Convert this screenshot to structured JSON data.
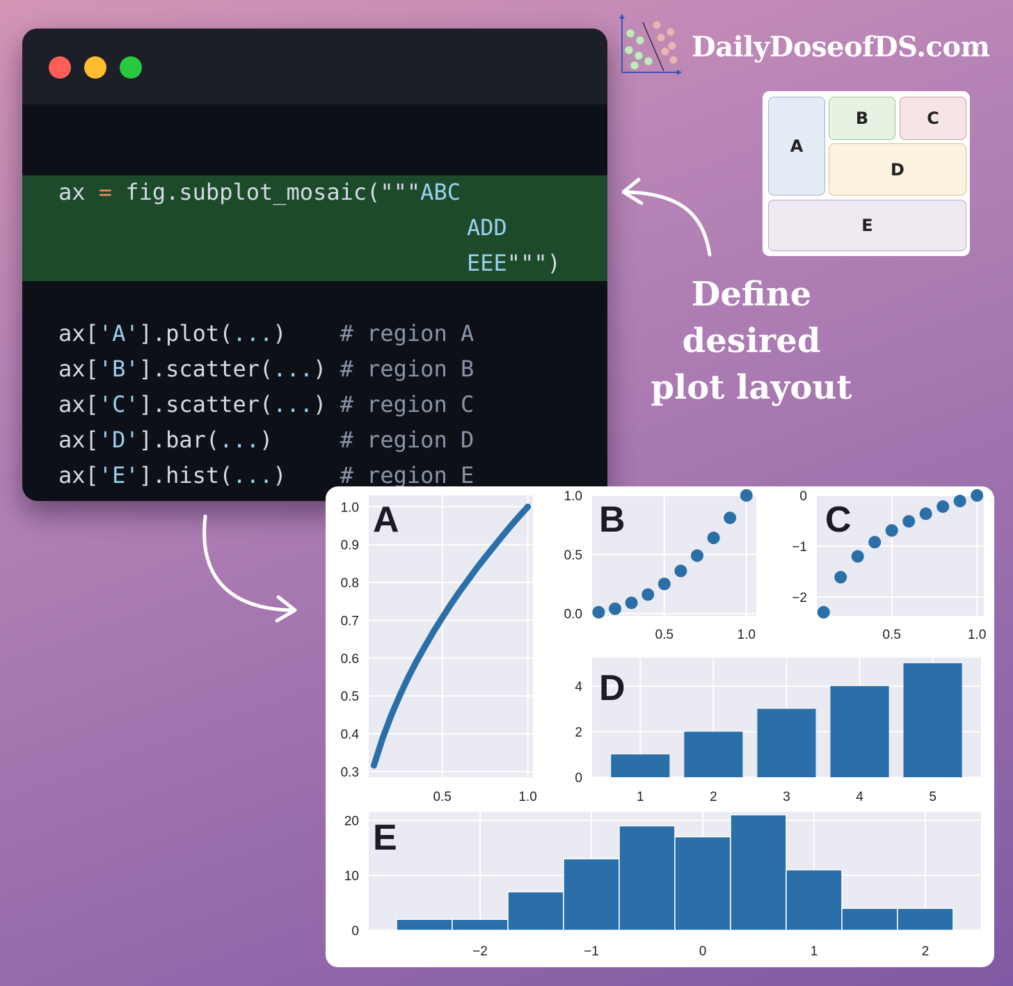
{
  "brand": {
    "name": "DailyDoseofDS.com",
    "logo_icon": "scatter-plot-logo-icon"
  },
  "editor": {
    "window_buttons": [
      {
        "name": "close",
        "color": "#ff5f57"
      },
      {
        "name": "minimize",
        "color": "#febc2e"
      },
      {
        "name": "maximize",
        "color": "#28c840"
      }
    ],
    "highlight_color": "#1c4a2a",
    "mosaic_call": {
      "var": "ax",
      "op": "=",
      "fn": "fig.subplot_mosaic(",
      "q_open": "\"\"\"",
      "row1": "ABC",
      "row2": "ADD",
      "row3": "EEE",
      "q_close": "\"\"\"",
      "close_paren": ")"
    },
    "calls": [
      {
        "prefix": "ax[",
        "key": "'A'",
        "method": "].plot(",
        "args": "...",
        "close": ")",
        "pad": "    ",
        "comment": "# region A"
      },
      {
        "prefix": "ax[",
        "key": "'B'",
        "method": "].scatter(",
        "args": "...",
        "close": ")",
        "pad": " ",
        "comment": "# region B"
      },
      {
        "prefix": "ax[",
        "key": "'C'",
        "method": "].scatter(",
        "args": "...",
        "close": ")",
        "pad": " ",
        "comment": "# region C"
      },
      {
        "prefix": "ax[",
        "key": "'D'",
        "method": "].bar(",
        "args": "...",
        "close": ")",
        "pad": "     ",
        "comment": "# region D"
      },
      {
        "prefix": "ax[",
        "key": "'E'",
        "method": "].hist(",
        "args": "...",
        "close": ")",
        "pad": "    ",
        "comment": "# region E"
      }
    ]
  },
  "layout_sketch": {
    "cells": [
      "A",
      "B",
      "C",
      "D",
      "E"
    ]
  },
  "caption": {
    "line1": "Define desired",
    "line2": "plot layout"
  },
  "chart_data": [
    {
      "label": "A",
      "type": "line",
      "x": [
        0.1,
        0.15,
        0.2,
        0.25,
        0.3,
        0.35,
        0.4,
        0.45,
        0.5,
        0.55,
        0.6,
        0.65,
        0.7,
        0.75,
        0.8,
        0.85,
        0.9,
        0.95,
        1.0
      ],
      "y": [
        0.316,
        0.387,
        0.447,
        0.5,
        0.548,
        0.592,
        0.632,
        0.671,
        0.707,
        0.742,
        0.775,
        0.806,
        0.837,
        0.866,
        0.894,
        0.922,
        0.949,
        0.975,
        1.0
      ],
      "xlim": [
        0.07,
        1.03
      ],
      "ylim": [
        0.285,
        1.03
      ],
      "xticks": [
        0.5,
        1.0
      ],
      "xtick_labels": [
        "0.5",
        "1.0"
      ],
      "yticks": [
        0.3,
        0.4,
        0.5,
        0.6,
        0.7,
        0.8,
        0.9,
        1.0
      ],
      "ytick_labels": [
        "0.3",
        "0.4",
        "0.5",
        "0.6",
        "0.7",
        "0.8",
        "0.9",
        "1.0"
      ],
      "grid": true,
      "color": "#2a6fa8"
    },
    {
      "label": "B",
      "type": "scatter",
      "x": [
        0.1,
        0.2,
        0.3,
        0.4,
        0.5,
        0.6,
        0.7,
        0.8,
        0.9,
        1.0
      ],
      "y": [
        0.01,
        0.04,
        0.09,
        0.16,
        0.25,
        0.36,
        0.49,
        0.64,
        0.81,
        1.0
      ],
      "xlim": [
        0.06,
        1.06
      ],
      "ylim": [
        -0.02,
        1.0
      ],
      "xticks": [
        0.5,
        1.0
      ],
      "xtick_labels": [
        "0.5",
        "1.0"
      ],
      "yticks": [
        0.0,
        0.5,
        1.0
      ],
      "ytick_labels": [
        "0.0",
        "0.5",
        "1.0"
      ],
      "grid": true,
      "color": "#2a6fa8"
    },
    {
      "label": "C",
      "type": "scatter",
      "x": [
        0.1,
        0.2,
        0.3,
        0.4,
        0.5,
        0.6,
        0.7,
        0.8,
        0.9,
        1.0
      ],
      "y": [
        -2.3,
        -1.61,
        -1.2,
        -0.92,
        -0.69,
        -0.51,
        -0.36,
        -0.22,
        -0.11,
        0.0
      ],
      "xlim": [
        0.06,
        1.04
      ],
      "ylim": [
        -2.37,
        0.0
      ],
      "xticks": [
        0.5,
        1.0
      ],
      "xtick_labels": [
        "0.5",
        "1.0"
      ],
      "yticks": [
        0,
        -1,
        -2
      ],
      "ytick_labels": [
        "0",
        "−1",
        "−2"
      ],
      "grid": true,
      "color": "#2a6fa8"
    },
    {
      "label": "D",
      "type": "bar",
      "categories": [
        1,
        2,
        3,
        4,
        5
      ],
      "values": [
        1,
        2,
        3,
        4,
        5
      ],
      "xlim": [
        0.34,
        5.66
      ],
      "ylim": [
        0,
        5.25
      ],
      "xtick_labels": [
        "1",
        "2",
        "3",
        "4",
        "5"
      ],
      "yticks": [
        0,
        2,
        4
      ],
      "ytick_labels": [
        "0",
        "2",
        "4"
      ],
      "grid": true,
      "color": "#2a6fa8"
    },
    {
      "label": "E",
      "type": "bar",
      "bins": [
        -2.75,
        -2.25,
        -1.75,
        -1.25,
        -0.75,
        -0.25,
        0.25,
        0.75,
        1.25,
        1.75,
        2.25
      ],
      "counts": [
        2,
        2,
        7,
        13,
        19,
        17,
        21,
        11,
        4,
        4
      ],
      "xlim": [
        -3.0,
        2.5
      ],
      "ylim": [
        0,
        21.5
      ],
      "xticks": [
        -2,
        -1,
        0,
        1,
        2
      ],
      "xtick_labels": [
        "−2",
        "−1",
        "0",
        "1",
        "2"
      ],
      "yticks": [
        0,
        10,
        20
      ],
      "ytick_labels": [
        "0",
        "10",
        "20"
      ],
      "grid": true,
      "color": "#2a6fa8"
    }
  ]
}
